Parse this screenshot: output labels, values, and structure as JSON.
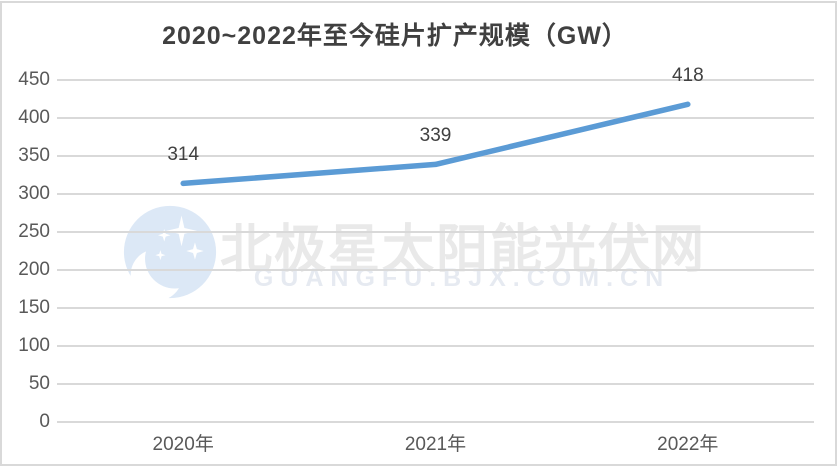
{
  "title": "2020~2022年至今硅片扩产规模（GW）",
  "watermark": {
    "logo_icon": "bjx-polaris-star-logo",
    "text": "北极星太阳能光伏网",
    "subtext": "GUANGFU.BJX.COM.CN",
    "logo_color": "#dce8f6",
    "text_color": "#e9e9e9"
  },
  "chart_data": {
    "type": "line",
    "title": "2020~2022年至今硅片扩产规模（GW）",
    "categories": [
      "2020年",
      "2021年",
      "2022年"
    ],
    "series": [
      {
        "name": "硅片扩产规模",
        "values": [
          314,
          339,
          418
        ]
      }
    ],
    "data_labels": [
      "314",
      "339",
      "418"
    ],
    "xlabel": "",
    "ylabel": "",
    "ylim": [
      0,
      450
    ],
    "ytick_interval": 50,
    "yticks": [
      450,
      400,
      350,
      300,
      250,
      200,
      150,
      100,
      50,
      0
    ],
    "grid": true,
    "legend_position": "none",
    "line_color": "#5b9bd5",
    "gridline_color": "#d9d9d9",
    "axis_label_color": "#595959",
    "title_color": "#404040"
  }
}
